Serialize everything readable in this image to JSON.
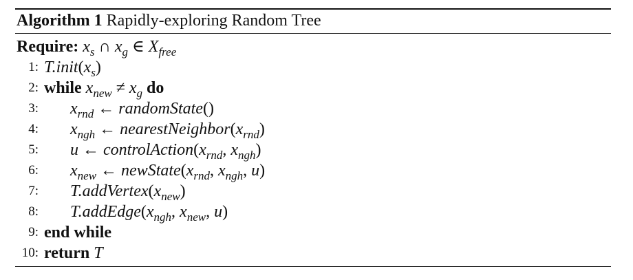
{
  "caption": {
    "label": "Algorithm 1",
    "title": "Rapidly-exploring Random Tree"
  },
  "require": {
    "keyword": "Require:",
    "expr_html": "<span class=\"math\">x</span><sub>s</sub> <span class=\"op\">∩</span> <span class=\"math\">x</span><sub>g</sub> <span class=\"op\">∈</span> <span class=\"math\">X</span><sub>free</sub>"
  },
  "lines": [
    {
      "num": "1:",
      "indent": false,
      "keyword": "",
      "keyword_end": "",
      "expr_html": "<span class=\"math\">T.init</span>(<span class=\"math\">x</span><sub>s</sub>)"
    },
    {
      "num": "2:",
      "indent": false,
      "keyword": "while",
      "keyword_end": "do",
      "expr_html": "<span class=\"math\">x</span><sub>new</sub> <span class=\"op\">≠</span> <span class=\"math\">x</span><sub>g</sub>"
    },
    {
      "num": "3:",
      "indent": true,
      "keyword": "",
      "keyword_end": "",
      "expr_html": "<span class=\"math\">x</span><sub>rnd</sub> <span class=\"op\">←</span> <span class=\"math\">randomState</span>()"
    },
    {
      "num": "4:",
      "indent": true,
      "keyword": "",
      "keyword_end": "",
      "expr_html": "<span class=\"math\">x</span><sub>ngh</sub> <span class=\"op\">←</span> <span class=\"math\">nearestNeighbor</span>(<span class=\"math\">x</span><sub>rnd</sub>)"
    },
    {
      "num": "5:",
      "indent": true,
      "keyword": "",
      "keyword_end": "",
      "expr_html": "<span class=\"math\">u</span> <span class=\"op\">←</span> <span class=\"math\">controlAction</span>(<span class=\"math\">x</span><sub>rnd</sub>, <span class=\"math\">x</span><sub>ngh</sub>)"
    },
    {
      "num": "6:",
      "indent": true,
      "keyword": "",
      "keyword_end": "",
      "expr_html": "<span class=\"math\">x</span><sub>new</sub> <span class=\"op\">←</span> <span class=\"math\">newState</span>(<span class=\"math\">x</span><sub>rnd</sub>, <span class=\"math\">x</span><sub>ngh</sub>, <span class=\"math\">u</span>)"
    },
    {
      "num": "7:",
      "indent": true,
      "keyword": "",
      "keyword_end": "",
      "expr_html": "<span class=\"math\">T.addVertex</span>(<span class=\"math\">x</span><sub>new</sub>)"
    },
    {
      "num": "8:",
      "indent": true,
      "keyword": "",
      "keyword_end": "",
      "expr_html": "<span class=\"math\">T.addEdge</span>(<span class=\"math\">x</span><sub>ngh</sub>, <span class=\"math\">x</span><sub>new</sub>, <span class=\"math\">u</span>)"
    },
    {
      "num": "9:",
      "indent": false,
      "keyword": "end while",
      "keyword_end": "",
      "expr_html": ""
    },
    {
      "num": "10:",
      "indent": false,
      "keyword": "return",
      "keyword_end": "",
      "expr_html": "<span class=\"math\">T</span>"
    }
  ]
}
